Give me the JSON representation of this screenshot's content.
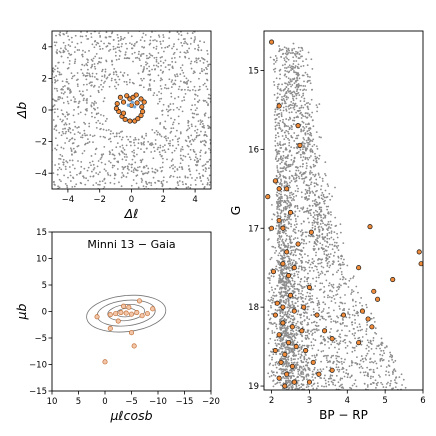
{
  "chart_data": [
    {
      "type": "scatter",
      "panel": "spatial",
      "xlabel": "Δℓ",
      "ylabel": "Δb",
      "xlim": [
        -5,
        5
      ],
      "ylim": [
        -5,
        5
      ],
      "xticks": [
        "−4",
        "−2",
        "0",
        "2",
        "4"
      ],
      "yticks": [
        "−4",
        "−2",
        "0",
        "2",
        "4"
      ],
      "xtick_values": [
        -4,
        -2,
        0,
        2,
        4
      ],
      "ytick_values": [
        -4,
        -2,
        0,
        2,
        4
      ],
      "grid": false,
      "series": [
        {
          "role": "field stars",
          "color": "#8c8c8c",
          "points": [
            [
              -3.0,
              1.6
            ],
            [
              3.1,
              -1.4
            ]
          ]
        },
        {
          "role": "members",
          "color": "#f08b3a",
          "edge": "#1a1a1a",
          "points": [
            [
              -0.9,
              0.4
            ],
            [
              -0.7,
              0.8
            ],
            [
              -0.5,
              0.5
            ],
            [
              -0.3,
              0.9
            ],
            [
              -0.1,
              0.7
            ],
            [
              0.1,
              0.8
            ],
            [
              0.3,
              0.95
            ],
            [
              0.6,
              0.7
            ],
            [
              0.8,
              0.5
            ],
            [
              -0.8,
              -0.1
            ],
            [
              -0.6,
              -0.4
            ],
            [
              -0.4,
              -0.6
            ],
            [
              -0.1,
              -0.7
            ],
            [
              0.2,
              -0.7
            ],
            [
              0.4,
              -0.55
            ],
            [
              0.6,
              -0.35
            ],
            [
              0.7,
              -0.1
            ],
            [
              0.65,
              0.2
            ],
            [
              -0.95,
              0.1
            ],
            [
              -0.5,
              -0.2
            ],
            [
              0.0,
              0.3
            ],
            [
              0.35,
              0.45
            ]
          ]
        },
        {
          "role": "highlight",
          "color": "#6fa8dc",
          "points": [
            [
              -0.2,
              0.3
            ],
            [
              0.05,
              0.5
            ],
            [
              0.2,
              0.2
            ]
          ]
        }
      ]
    },
    {
      "type": "scatter",
      "panel": "proper-motion",
      "title": "Minni 13  −  Gaia",
      "xlabel": "μℓcosb",
      "ylabel": "μb",
      "xlim": [
        10,
        -20
      ],
      "ylim": [
        -15,
        15
      ],
      "xticks": [
        "10",
        "5",
        "0",
        "−5",
        "−10",
        "−15",
        "−20"
      ],
      "xtick_values": [
        10,
        5,
        0,
        -5,
        -10,
        -15,
        -20
      ],
      "yticks": [
        "−15",
        "−10",
        "−5",
        "0",
        "5",
        "10",
        "15"
      ],
      "ytick_values": [
        -15,
        -10,
        -5,
        0,
        5,
        10,
        15
      ],
      "grid": false,
      "series": [
        {
          "role": "members",
          "color": "#f4c6a8",
          "edge": "#c0703a",
          "points": [
            [
              -1,
              -0.6
            ],
            [
              -2,
              -0.4
            ],
            [
              -3,
              -0.2
            ],
            [
              -4,
              -0.3
            ],
            [
              -5,
              -0.5
            ],
            [
              -6,
              -0.2
            ],
            [
              -7,
              -0.8
            ],
            [
              -3.5,
              1.0
            ],
            [
              -2.5,
              -1.8
            ],
            [
              1.5,
              -1.0
            ],
            [
              -8,
              -0.4
            ],
            [
              -4.5,
              0.8
            ],
            [
              -6.5,
              2.0
            ],
            [
              -9,
              0.5
            ],
            [
              -1,
              -3.2
            ],
            [
              -5,
              -4.0
            ],
            [
              0,
              -9.5
            ],
            [
              -5.5,
              -6.5
            ]
          ]
        }
      ],
      "contours": [
        {
          "cx": -4,
          "cy": -0.4,
          "rx": 7.5,
          "ry": 3.4
        },
        {
          "cx": -4,
          "cy": -0.3,
          "rx": 5.5,
          "ry": 2.4
        },
        {
          "cx": -4,
          "cy": -0.2,
          "rx": 3.5,
          "ry": 1.5
        },
        {
          "cx": -4,
          "cy": -0.2,
          "rx": 1.8,
          "ry": 0.8
        }
      ]
    },
    {
      "type": "scatter",
      "panel": "cmd",
      "xlabel": "BP − RP",
      "ylabel": "G",
      "xlim": [
        1.8,
        6.0
      ],
      "ylim": [
        19.05,
        14.5
      ],
      "xticks": [
        "2",
        "3",
        "4",
        "5",
        "6"
      ],
      "xtick_values": [
        2,
        3,
        4,
        5,
        6
      ],
      "yticks": [
        "15",
        "16",
        "17",
        "18",
        "19"
      ],
      "ytick_values": [
        15,
        16,
        17,
        18,
        19
      ],
      "grid": false,
      "series": [
        {
          "role": "field stars",
          "color": "#8c8c8c",
          "points": [
            [
              2.6,
              15.6
            ],
            [
              3.4,
              17.8
            ]
          ]
        },
        {
          "role": "members",
          "color": "#f08b3a",
          "edge": "#1a1a1a",
          "points": [
            [
              2.0,
              14.64
            ],
            [
              2.2,
              15.45
            ],
            [
              2.7,
              15.7
            ],
            [
              2.75,
              15.95
            ],
            [
              2.1,
              16.4
            ],
            [
              2.2,
              16.5
            ],
            [
              2.4,
              16.5
            ],
            [
              1.9,
              16.6
            ],
            [
              2.5,
              16.8
            ],
            [
              2.2,
              16.9
            ],
            [
              2.3,
              17.0
            ],
            [
              2.0,
              17.0
            ],
            [
              3.05,
              17.05
            ],
            [
              2.7,
              17.2
            ],
            [
              2.4,
              17.3
            ],
            [
              2.3,
              17.45
            ],
            [
              2.6,
              17.5
            ],
            [
              4.3,
              17.5
            ],
            [
              2.05,
              17.55
            ],
            [
              2.45,
              17.6
            ],
            [
              3.0,
              17.75
            ],
            [
              4.7,
              17.8
            ],
            [
              2.5,
              17.85
            ],
            [
              4.8,
              17.9
            ],
            [
              2.15,
              17.95
            ],
            [
              2.3,
              18.0
            ],
            [
              2.6,
              18.05
            ],
            [
              2.85,
              18.0
            ],
            [
              4.4,
              18.05
            ],
            [
              2.1,
              18.1
            ],
            [
              3.2,
              18.1
            ],
            [
              3.9,
              18.1
            ],
            [
              2.3,
              18.2
            ],
            [
              2.55,
              18.25
            ],
            [
              4.55,
              18.15
            ],
            [
              2.8,
              18.3
            ],
            [
              3.4,
              18.3
            ],
            [
              4.65,
              18.25
            ],
            [
              2.2,
              18.35
            ],
            [
              2.45,
              18.45
            ],
            [
              2.65,
              18.5
            ],
            [
              3.6,
              18.4
            ],
            [
              4.3,
              18.45
            ],
            [
              2.1,
              18.55
            ],
            [
              2.35,
              18.6
            ],
            [
              2.9,
              18.55
            ],
            [
              2.25,
              18.7
            ],
            [
              2.55,
              18.75
            ],
            [
              3.1,
              18.7
            ],
            [
              2.4,
              18.85
            ],
            [
              3.25,
              18.85
            ],
            [
              3.6,
              18.8
            ],
            [
              2.2,
              18.9
            ],
            [
              2.6,
              18.95
            ],
            [
              2.35,
              19.0
            ],
            [
              3.0,
              18.95
            ],
            [
              5.2,
              17.65
            ],
            [
              5.9,
              17.3
            ],
            [
              5.95,
              17.45
            ],
            [
              4.6,
              16.98
            ]
          ]
        }
      ]
    }
  ]
}
